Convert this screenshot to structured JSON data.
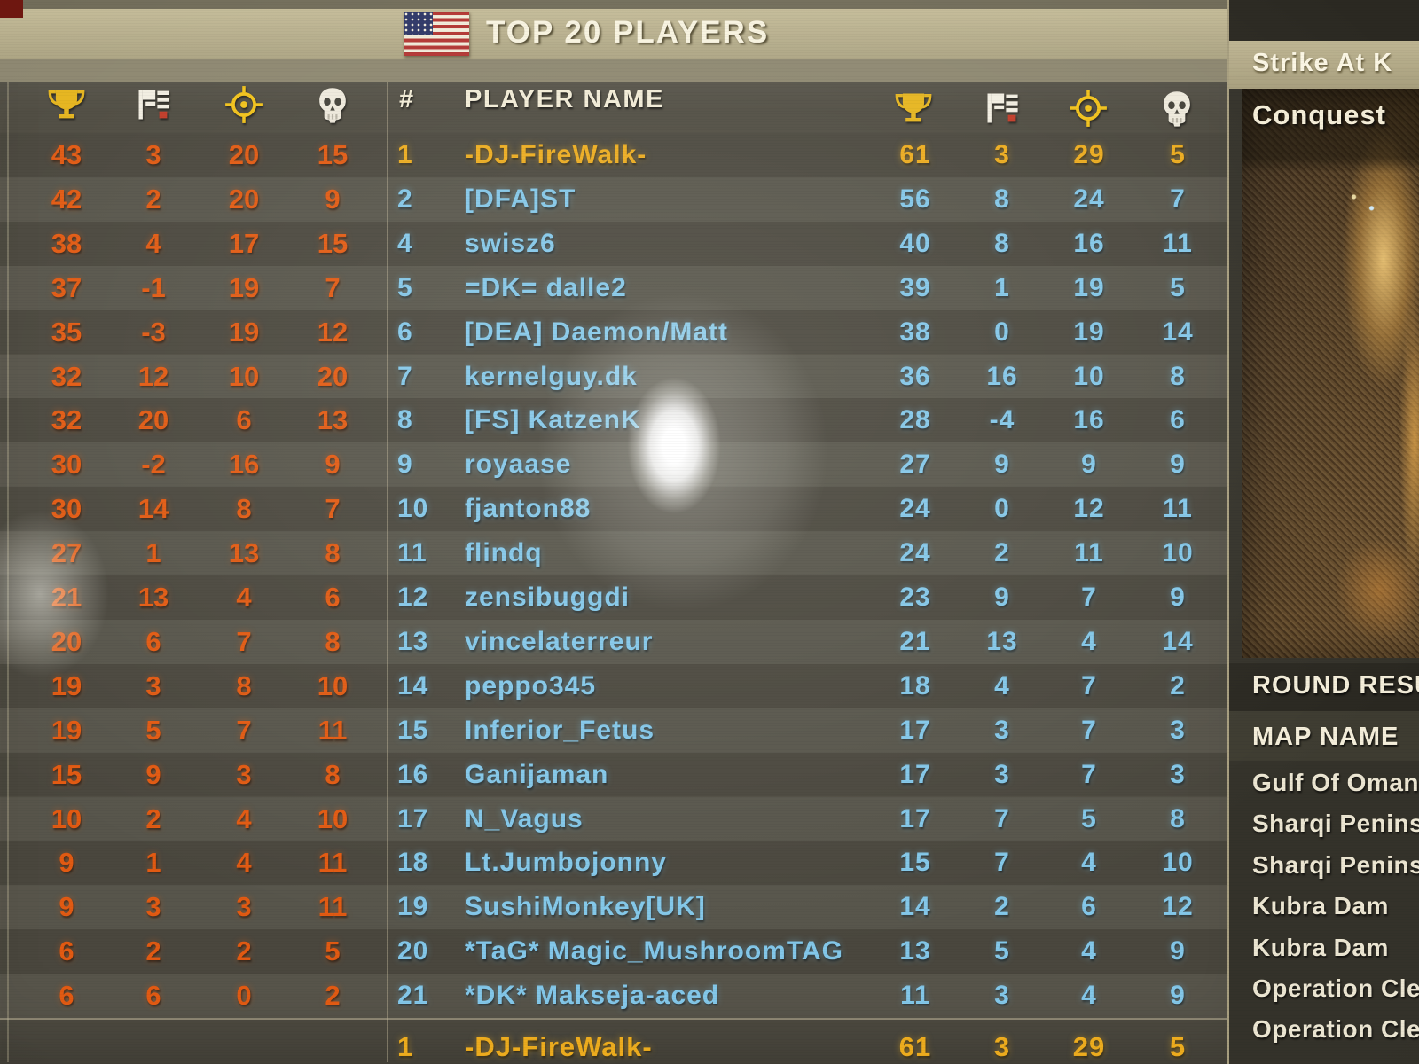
{
  "header": {
    "title": "TOP 20 PLAYERS",
    "flag_icon": "us-flag-icon"
  },
  "stat_columns": [
    {
      "key": "score",
      "icon": "trophy-icon"
    },
    {
      "key": "teamwork",
      "icon": "teamwork-flag-icon"
    },
    {
      "key": "kills",
      "icon": "kills-target-icon"
    },
    {
      "key": "deaths",
      "icon": "deaths-skull-icon"
    }
  ],
  "left_table": {
    "rows": [
      [
        43,
        3,
        20,
        15
      ],
      [
        42,
        2,
        20,
        9
      ],
      [
        38,
        4,
        17,
        15
      ],
      [
        37,
        -1,
        19,
        7
      ],
      [
        35,
        -3,
        19,
        12
      ],
      [
        32,
        12,
        10,
        20
      ],
      [
        32,
        20,
        6,
        13
      ],
      [
        30,
        -2,
        16,
        9
      ],
      [
        30,
        14,
        8,
        7
      ],
      [
        27,
        1,
        13,
        8
      ],
      [
        21,
        13,
        4,
        6
      ],
      [
        20,
        6,
        7,
        8
      ],
      [
        19,
        3,
        8,
        10
      ],
      [
        19,
        5,
        7,
        11
      ],
      [
        15,
        9,
        3,
        8
      ],
      [
        10,
        2,
        4,
        10
      ],
      [
        9,
        1,
        4,
        11
      ],
      [
        9,
        3,
        3,
        11
      ],
      [
        6,
        2,
        2,
        5
      ],
      [
        6,
        6,
        0,
        2
      ]
    ]
  },
  "main_table": {
    "rank_header": "#",
    "name_header": "PLAYER NAME",
    "rows": [
      {
        "rank": "1",
        "name": "-DJ-FireWalk-",
        "stats": [
          61,
          3,
          29,
          5
        ],
        "highlight": true
      },
      {
        "rank": "2",
        "name": "[DFA]ST",
        "stats": [
          56,
          8,
          24,
          7
        ],
        "highlight": false
      },
      {
        "rank": "4",
        "name": "swisz6",
        "stats": [
          40,
          8,
          16,
          11
        ],
        "highlight": false
      },
      {
        "rank": "5",
        "name": "=DK= dalle2",
        "stats": [
          39,
          1,
          19,
          5
        ],
        "highlight": false
      },
      {
        "rank": "6",
        "name": "[DEA] Daemon/Matt",
        "stats": [
          38,
          0,
          19,
          14
        ],
        "highlight": false
      },
      {
        "rank": "7",
        "name": "kernelguy.dk",
        "stats": [
          36,
          16,
          10,
          8
        ],
        "highlight": false
      },
      {
        "rank": "8",
        "name": "[FS] KatzenK",
        "stats": [
          28,
          -4,
          16,
          6
        ],
        "highlight": false
      },
      {
        "rank": "9",
        "name": "royaase",
        "stats": [
          27,
          9,
          9,
          9
        ],
        "highlight": false
      },
      {
        "rank": "10",
        "name": "fjanton88",
        "stats": [
          24,
          0,
          12,
          11
        ],
        "highlight": false
      },
      {
        "rank": "11",
        "name": "flindq",
        "stats": [
          24,
          2,
          11,
          10
        ],
        "highlight": false
      },
      {
        "rank": "12",
        "name": "zensibuggdi",
        "stats": [
          23,
          9,
          7,
          9
        ],
        "highlight": false
      },
      {
        "rank": "13",
        "name": "vincelaterreur",
        "stats": [
          21,
          13,
          4,
          14
        ],
        "highlight": false
      },
      {
        "rank": "14",
        "name": "peppo345",
        "stats": [
          18,
          4,
          7,
          2
        ],
        "highlight": false
      },
      {
        "rank": "15",
        "name": "Inferior_Fetus",
        "stats": [
          17,
          3,
          7,
          3
        ],
        "highlight": false
      },
      {
        "rank": "16",
        "name": "Ganijaman",
        "stats": [
          17,
          3,
          7,
          3
        ],
        "highlight": false
      },
      {
        "rank": "17",
        "name": "N_Vagus",
        "stats": [
          17,
          7,
          5,
          8
        ],
        "highlight": false
      },
      {
        "rank": "18",
        "name": "Lt.Jumbojonny",
        "stats": [
          15,
          7,
          4,
          10
        ],
        "highlight": false
      },
      {
        "rank": "19",
        "name": "SushiMonkey[UK]",
        "stats": [
          14,
          2,
          6,
          12
        ],
        "highlight": false
      },
      {
        "rank": "20",
        "name": "*TaG* Magic_MushroomTAG",
        "stats": [
          13,
          5,
          4,
          9
        ],
        "highlight": false
      },
      {
        "rank": "21",
        "name": "*DK* Makseja-aced",
        "stats": [
          11,
          3,
          4,
          9
        ],
        "highlight": false
      }
    ],
    "pinned": {
      "rank": "1",
      "name": "-DJ-FireWalk-",
      "stats": [
        61,
        3,
        29,
        5
      ]
    }
  },
  "right_panel": {
    "map_title": "Strike At K",
    "mode": "Conquest",
    "round_results": "ROUND RESUL",
    "map_name_header": "MAP NAME",
    "maps": [
      "Gulf Of Oman",
      "Sharqi Peninsu",
      "Sharqi Peninsu",
      "Kubra Dam",
      "Kubra Dam",
      "Operation Clea",
      "Operation Clea"
    ]
  },
  "colors": {
    "accent_orange": "#e25a12",
    "accent_blue": "#83c7e9",
    "accent_gold": "#edac1e",
    "band_tan": "#b7ae8c"
  }
}
